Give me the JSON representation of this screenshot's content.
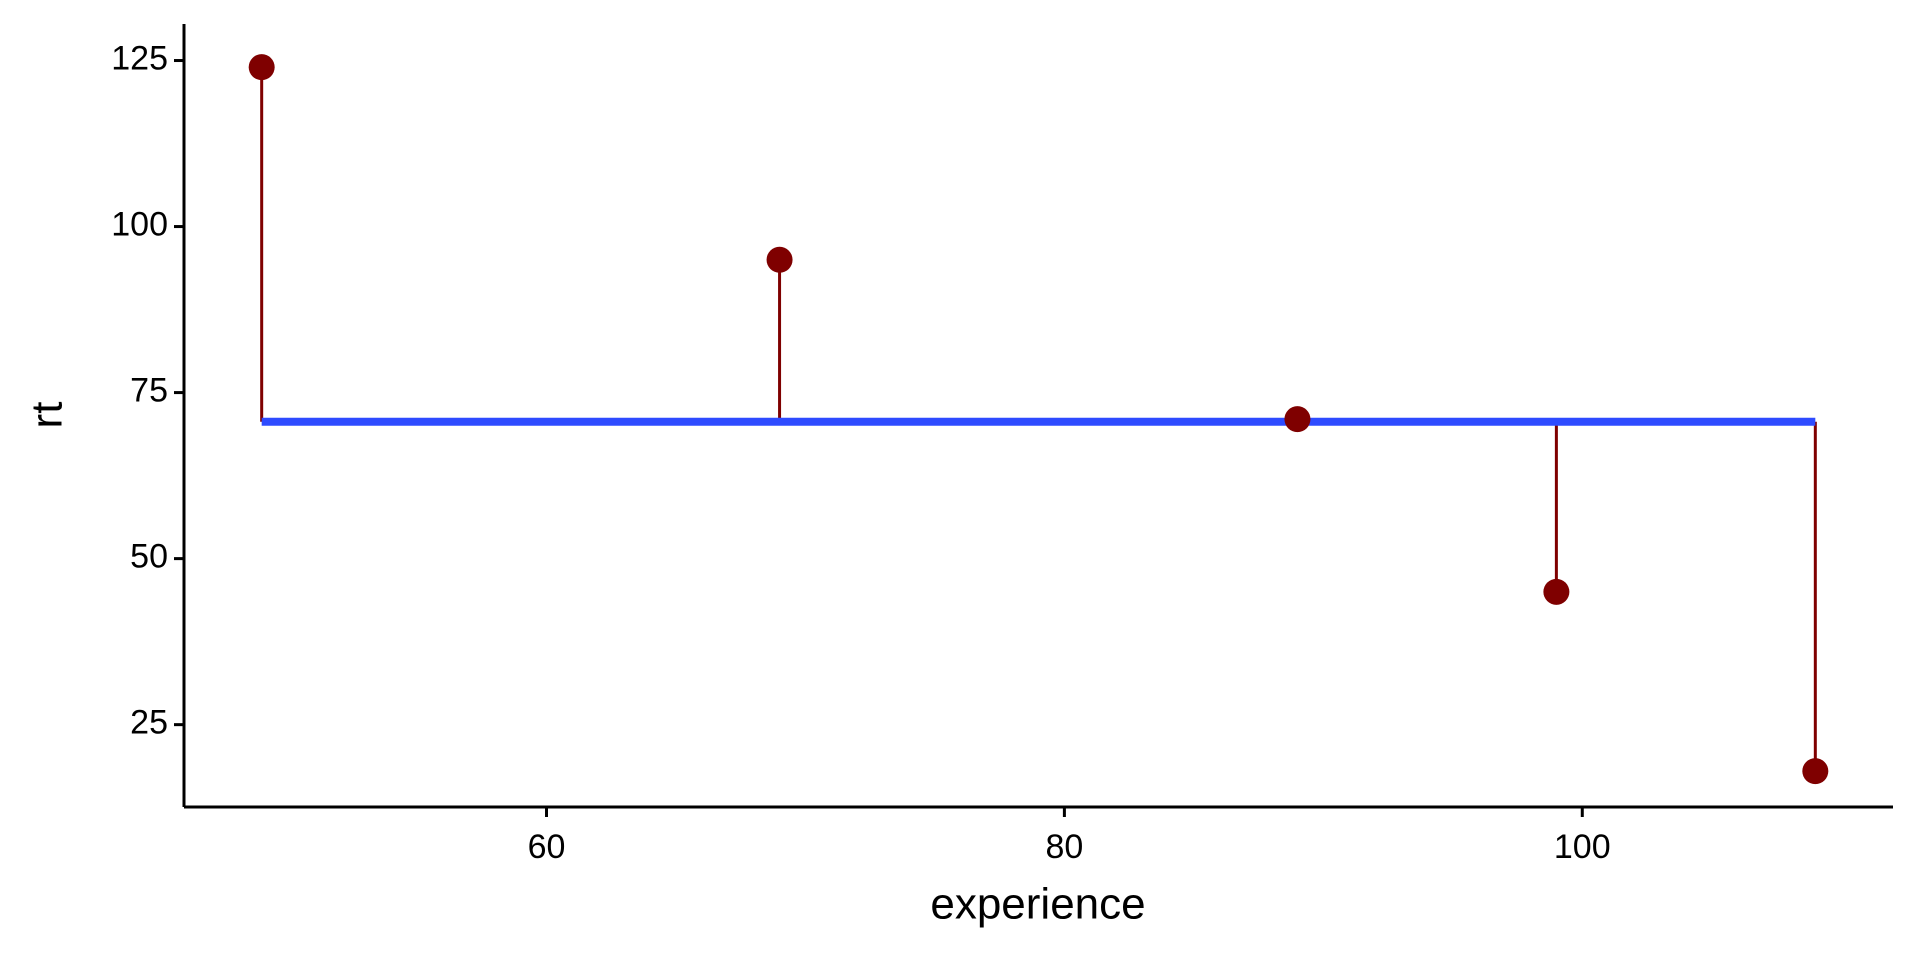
{
  "chart_data": {
    "type": "scatter",
    "x_label": "experience",
    "y_label": "rt",
    "x": [
      49,
      69,
      89,
      99,
      109
    ],
    "values": [
      124,
      95,
      71,
      45,
      18
    ],
    "color": "#7f0000",
    "mean": 70.6,
    "mean_color": "#2e4bff",
    "xlim": [
      46,
      112
    ],
    "xticks": [
      60,
      80,
      100
    ],
    "ylim": [
      12.6,
      130.5
    ],
    "yticks": [
      25,
      50,
      75,
      100,
      125
    ],
    "grid": false
  }
}
